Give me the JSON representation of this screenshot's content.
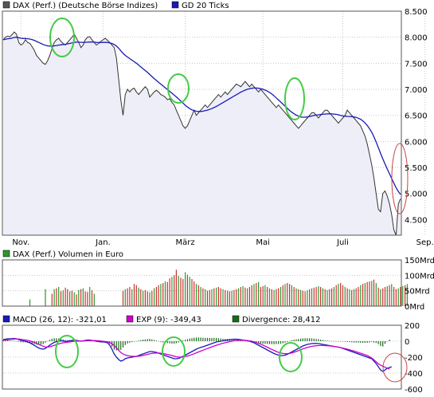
{
  "colors": {
    "price": "#333333",
    "gd": "#1a1ab8",
    "fill": "#eeeef8",
    "vol_up": "#2a9a2a",
    "vol_down": "#cc3030",
    "macd": "#1a1ab8",
    "exp": "#cc00cc",
    "div": "#1a6a1a",
    "highlight": "#44cc44",
    "alert": "#cc4444"
  },
  "chart_data": [
    {
      "type": "line",
      "panel": "price",
      "legend": [
        {
          "label": "DAX (Perf.) (Deutsche Börse Indizes)",
          "color": "#555555"
        },
        {
          "label": "GD 20 Ticks",
          "color": "#1a1ab8"
        }
      ],
      "x_tick_labels": [
        "Nov.",
        "Jan.",
        "März",
        "Mai",
        "Juli",
        "Sep."
      ],
      "x_tick_index": [
        8,
        45,
        82,
        117,
        153,
        190
      ],
      "y_tick_labels": [
        "8.500",
        "8.000",
        "7.500",
        "7.000",
        "6.500",
        "6.000",
        "5.500",
        "5.000",
        "4.500"
      ],
      "y_tick_values": [
        8500,
        8000,
        7500,
        7000,
        6500,
        6000,
        5500,
        5000,
        4500
      ],
      "ylim": [
        4200,
        8500
      ],
      "series": [
        {
          "name": "DAX (Perf.) (Deutsche Börse Indizes)",
          "values": [
            7950,
            8000,
            8020,
            8010,
            8050,
            8100,
            8060,
            7900,
            7850,
            7880,
            7950,
            7900,
            7880,
            7820,
            7750,
            7650,
            7600,
            7550,
            7500,
            7480,
            7550,
            7650,
            7780,
            7900,
            7950,
            7980,
            7920,
            7880,
            7850,
            7900,
            7950,
            8000,
            8060,
            7980,
            7900,
            7800,
            7850,
            7950,
            8000,
            8010,
            7950,
            7900,
            7850,
            7880,
            7920,
            7950,
            7980,
            7940,
            7900,
            7850,
            7800,
            7600,
            7200,
            6800,
            6500,
            6900,
            7000,
            6950,
            7000,
            7020,
            6950,
            6900,
            6950,
            7000,
            7050,
            7000,
            6850,
            6900,
            6950,
            6980,
            6950,
            6900,
            6880,
            6850,
            6800,
            6820,
            6750,
            6700,
            6600,
            6500,
            6400,
            6300,
            6250,
            6300,
            6400,
            6500,
            6600,
            6500,
            6550,
            6600,
            6650,
            6700,
            6650,
            6700,
            6750,
            6800,
            6850,
            6900,
            6850,
            6900,
            6950,
            6900,
            6950,
            7000,
            7050,
            7100,
            7080,
            7050,
            7100,
            7150,
            7100,
            7050,
            7100,
            7050,
            7000,
            6950,
            7000,
            6950,
            6900,
            6850,
            6800,
            6750,
            6700,
            6650,
            6700,
            6650,
            6600,
            6550,
            6500,
            6450,
            6400,
            6350,
            6300,
            6250,
            6300,
            6350,
            6400,
            6450,
            6500,
            6550,
            6550,
            6500,
            6450,
            6500,
            6550,
            6600,
            6600,
            6550,
            6500,
            6450,
            6400,
            6350,
            6400,
            6450,
            6500,
            6600,
            6550,
            6500,
            6450,
            6400,
            6350,
            6300,
            6200,
            6100,
            5950,
            5750,
            5550,
            5300,
            5000,
            4700,
            4650,
            5000,
            5050,
            4950,
            4800,
            4600,
            4300,
            4200,
            4800,
            4900
          ]
        },
        {
          "name": "GD 20 Ticks",
          "values": [
            7950,
            7960,
            7970,
            7975,
            7985,
            7995,
            8000,
            7990,
            7980,
            7975,
            7975,
            7970,
            7965,
            7955,
            7940,
            7920,
            7900,
            7880,
            7860,
            7845,
            7835,
            7830,
            7830,
            7835,
            7840,
            7848,
            7855,
            7860,
            7865,
            7872,
            7880,
            7890,
            7900,
            7905,
            7905,
            7902,
            7900,
            7902,
            7905,
            7908,
            7908,
            7905,
            7900,
            7898,
            7898,
            7900,
            7902,
            7898,
            7890,
            7880,
            7860,
            7830,
            7790,
            7740,
            7690,
            7650,
            7620,
            7590,
            7560,
            7530,
            7500,
            7465,
            7430,
            7395,
            7360,
            7325,
            7285,
            7245,
            7205,
            7170,
            7135,
            7100,
            7065,
            7030,
            6995,
            6960,
            6925,
            6890,
            6855,
            6815,
            6775,
            6735,
            6695,
            6660,
            6630,
            6605,
            6590,
            6580,
            6575,
            6575,
            6580,
            6590,
            6600,
            6615,
            6630,
            6650,
            6670,
            6695,
            6720,
            6745,
            6770,
            6795,
            6820,
            6845,
            6870,
            6895,
            6920,
            6945,
            6965,
            6985,
            7000,
            7010,
            7020,
            7025,
            7025,
            7020,
            7012,
            7000,
            6985,
            6965,
            6940,
            6910,
            6875,
            6835,
            6795,
            6755,
            6715,
            6675,
            6635,
            6595,
            6560,
            6530,
            6505,
            6485,
            6470,
            6465,
            6465,
            6470,
            6478,
            6488,
            6498,
            6505,
            6510,
            6515,
            6520,
            6525,
            6528,
            6530,
            6528,
            6525,
            6520,
            6510,
            6500,
            6490,
            6485,
            6480,
            6478,
            6475,
            6470,
            6460,
            6445,
            6425,
            6395,
            6355,
            6305,
            6245,
            6175,
            6090,
            5990,
            5880,
            5770,
            5665,
            5565,
            5470,
            5380,
            5290,
            5200,
            5110,
            5040,
            4980
          ]
        }
      ]
    },
    {
      "type": "bar",
      "panel": "volume",
      "legend": [
        {
          "label": "DAX (Perf.) Volumen in Euro",
          "color": "#2a9a2a"
        }
      ],
      "y_tick_labels": [
        "150Mrd",
        "100Mrd",
        "50Mrd",
        "0Mrd"
      ],
      "y_tick_values": [
        150,
        100,
        50,
        0
      ],
      "ylim": [
        0,
        150
      ],
      "values": [
        0,
        0,
        0,
        0,
        0,
        0,
        0,
        0,
        0,
        0,
        0,
        0,
        22,
        0,
        0,
        0,
        0,
        0,
        0,
        55,
        0,
        0,
        40,
        55,
        58,
        62,
        48,
        52,
        60,
        55,
        48,
        50,
        45,
        38,
        52,
        55,
        58,
        48,
        46,
        62,
        52,
        40,
        0,
        0,
        0,
        0,
        0,
        0,
        0,
        0,
        0,
        0,
        0,
        0,
        50,
        55,
        58,
        62,
        55,
        72,
        68,
        60,
        55,
        50,
        52,
        48,
        45,
        50,
        58,
        62,
        68,
        72,
        75,
        80,
        78,
        90,
        95,
        100,
        118,
        98,
        92,
        88,
        110,
        102,
        95,
        88,
        80,
        72,
        68,
        62,
        58,
        55,
        50,
        52,
        55,
        58,
        60,
        62,
        58,
        55,
        52,
        50,
        48,
        50,
        52,
        55,
        58,
        62,
        65,
        60,
        58,
        62,
        68,
        72,
        75,
        78,
        62,
        65,
        68,
        62,
        58,
        55,
        52,
        55,
        58,
        62,
        68,
        72,
        75,
        72,
        68,
        62,
        58,
        55,
        52,
        50,
        48,
        52,
        55,
        58,
        60,
        62,
        65,
        62,
        58,
        55,
        52,
        55,
        58,
        62,
        68,
        72,
        75,
        68,
        62,
        58,
        55,
        52,
        55,
        58,
        62,
        68,
        72,
        75,
        78,
        80,
        82,
        86,
        75,
        60,
        55,
        58,
        62,
        65,
        68,
        72,
        62,
        55,
        58,
        62,
        65,
        68,
        72
      ],
      "down_flags": [
        0,
        0,
        0,
        0,
        0,
        0,
        0,
        0,
        0,
        0,
        0,
        0,
        0,
        0,
        0,
        0,
        0,
        0,
        0,
        0,
        0,
        0,
        1,
        0,
        1,
        0,
        1,
        0,
        1,
        1,
        0,
        1,
        0,
        1,
        0,
        1,
        0,
        1,
        1,
        0,
        1,
        0,
        0,
        0,
        0,
        0,
        0,
        0,
        0,
        0,
        0,
        0,
        0,
        0,
        1,
        0,
        1,
        1,
        0,
        1,
        1,
        0,
        1,
        0,
        1,
        1,
        0,
        1,
        0,
        1,
        1,
        0,
        1,
        0,
        1,
        1,
        0,
        1,
        1,
        0,
        1,
        1,
        0,
        1,
        0,
        1,
        1,
        0,
        1,
        0,
        1,
        0,
        1,
        1,
        0,
        1,
        0,
        1,
        1,
        0,
        1,
        0,
        1,
        0,
        1,
        1,
        0,
        1,
        0,
        1,
        0,
        1,
        1,
        0,
        1,
        0,
        1,
        1,
        0,
        1,
        0,
        1,
        0,
        1,
        1,
        0,
        1,
        0,
        1,
        1,
        0,
        1,
        0,
        1,
        0,
        1,
        1,
        0,
        1,
        0,
        1,
        1,
        0,
        1,
        0,
        1,
        0,
        1,
        1,
        0,
        1,
        0,
        1,
        1,
        0,
        1,
        0,
        1,
        0,
        1,
        1,
        0,
        1,
        0,
        1,
        1,
        0,
        1,
        0,
        1,
        0,
        1,
        1,
        0,
        1,
        0,
        1,
        1,
        0,
        1,
        0,
        1,
        0,
        1,
        1,
        0
      ]
    },
    {
      "type": "line",
      "panel": "macd",
      "legend": [
        {
          "label": "MACD (26, 12): -321,01",
          "color": "#1a1ab8"
        },
        {
          "label": "EXP (9): -349,43",
          "color": "#cc00cc"
        },
        {
          "label": "Divergence: 28,412",
          "color": "#1a6a1a"
        }
      ],
      "y_tick_labels": [
        "200",
        "0",
        "-200",
        "-400",
        "-600"
      ],
      "y_tick_values": [
        200,
        0,
        -200,
        -400,
        -600
      ],
      "ylim": [
        -600,
        200
      ],
      "series": [
        {
          "name": "MACD (26, 12)",
          "values": [
            20,
            25,
            30,
            30,
            32,
            35,
            30,
            20,
            10,
            5,
            0,
            -10,
            -20,
            -35,
            -50,
            -70,
            -85,
            -95,
            -100,
            -90,
            -70,
            -50,
            -30,
            -15,
            -5,
            0,
            5,
            2,
            -2,
            0,
            5,
            10,
            15,
            10,
            5,
            0,
            5,
            10,
            15,
            15,
            10,
            5,
            0,
            -5,
            -8,
            -10,
            -12,
            -20,
            -50,
            -100,
            -160,
            -200,
            -230,
            -250,
            -240,
            -220,
            -210,
            -205,
            -200,
            -195,
            -190,
            -180,
            -170,
            -160,
            -150,
            -140,
            -130,
            -130,
            -135,
            -140,
            -150,
            -160,
            -170,
            -180,
            -190,
            -200,
            -210,
            -220,
            -220,
            -215,
            -205,
            -190,
            -175,
            -160,
            -145,
            -130,
            -115,
            -100,
            -88,
            -78,
            -70,
            -60,
            -50,
            -40,
            -30,
            -20,
            -10,
            -5,
            0,
            5,
            10,
            15,
            20,
            22,
            25,
            25,
            22,
            18,
            15,
            10,
            5,
            0,
            -10,
            -20,
            -35,
            -50,
            -65,
            -80,
            -95,
            -110,
            -125,
            -140,
            -155,
            -165,
            -175,
            -180,
            -180,
            -175,
            -165,
            -150,
            -135,
            -120,
            -105,
            -90,
            -75,
            -60,
            -50,
            -40,
            -35,
            -30,
            -28,
            -28,
            -30,
            -35,
            -40,
            -45,
            -50,
            -55,
            -60,
            -65,
            -70,
            -75,
            -80,
            -90,
            -100,
            -110,
            -120,
            -130,
            -140,
            -150,
            -160,
            -170,
            -180,
            -190,
            -200,
            -210,
            -220,
            -250,
            -280,
            -320,
            -360,
            -380,
            -360,
            -340,
            -330,
            -321
          ]
        },
        {
          "name": "EXP (9)",
          "values": [
            10,
            14,
            18,
            22,
            25,
            28,
            29,
            27,
            23,
            19,
            15,
            10,
            4,
            -5,
            -15,
            -27,
            -40,
            -52,
            -63,
            -71,
            -73,
            -69,
            -61,
            -52,
            -42,
            -34,
            -26,
            -20,
            -16,
            -12,
            -9,
            -5,
            -1,
            1,
            2,
            2,
            3,
            4,
            6,
            8,
            9,
            8,
            7,
            5,
            2,
            -1,
            -4,
            -8,
            -17,
            -32,
            -55,
            -84,
            -114,
            -141,
            -161,
            -173,
            -181,
            -186,
            -189,
            -190,
            -190,
            -188,
            -184,
            -179,
            -173,
            -166,
            -159,
            -153,
            -150,
            -148,
            -148,
            -151,
            -155,
            -160,
            -166,
            -173,
            -180,
            -188,
            -195,
            -199,
            -200,
            -198,
            -193,
            -186,
            -178,
            -168,
            -158,
            -146,
            -135,
            -124,
            -113,
            -102,
            -92,
            -81,
            -71,
            -61,
            -51,
            -42,
            -34,
            -26,
            -19,
            -12,
            -6,
            0,
            5,
            9,
            11,
            12,
            12,
            11,
            9,
            5,
            0,
            -7,
            -16,
            -26,
            -37,
            -49,
            -62,
            -75,
            -89,
            -103,
            -116,
            -129,
            -140,
            -148,
            -154,
            -157,
            -156,
            -153,
            -147,
            -139,
            -129,
            -118,
            -107,
            -96,
            -87,
            -78,
            -71,
            -65,
            -60,
            -57,
            -55,
            -54,
            -54,
            -55,
            -57,
            -59,
            -62,
            -66,
            -70,
            -74,
            -80,
            -86,
            -93,
            -100,
            -108,
            -116,
            -124,
            -133,
            -142,
            -151,
            -160,
            -170,
            -180,
            -194,
            -211,
            -233,
            -258,
            -283,
            -300,
            -314,
            -327,
            -338,
            -349
          ]
        }
      ]
    }
  ]
}
